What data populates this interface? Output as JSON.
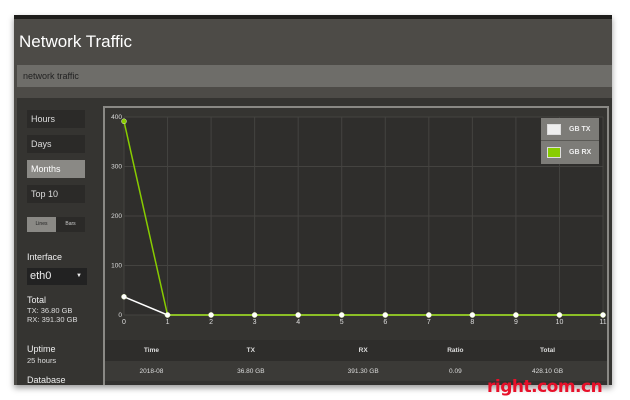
{
  "window": {
    "title": "Network Traffic",
    "breadcrumb": "network traffic"
  },
  "sidebar": {
    "nav": [
      {
        "label": "Hours",
        "active": false
      },
      {
        "label": "Days",
        "active": false
      },
      {
        "label": "Months",
        "active": true
      },
      {
        "label": "Top 10",
        "active": false
      }
    ],
    "view_toggle": {
      "options": [
        "Lines",
        "Bars"
      ],
      "selected": "Lines"
    },
    "interface_label": "Interface",
    "interface_value": "eth0",
    "total_label": "Total",
    "total_tx": "TX: 36.80 GB",
    "total_rx": "RX: 391.30 GB",
    "uptime_label": "Uptime",
    "uptime_value": "25 hours",
    "database_label": "Database"
  },
  "chart_data": {
    "type": "line",
    "x": [
      0,
      1,
      2,
      3,
      4,
      5,
      6,
      7,
      8,
      9,
      10,
      11
    ],
    "xlim": [
      0,
      11
    ],
    "ylim": [
      0,
      400
    ],
    "yticks": [
      0,
      100,
      200,
      300,
      400
    ],
    "grid": true,
    "legend_placement": "top-right",
    "series": [
      {
        "name": "GB TX",
        "color": "#ffffff",
        "values": [
          36.8,
          0,
          0,
          0,
          0,
          0,
          0,
          0,
          0,
          0,
          0,
          0
        ]
      },
      {
        "name": "GB RX",
        "color": "#88cc00",
        "values": [
          391.3,
          0,
          0,
          0,
          0,
          0,
          0,
          0,
          0,
          0,
          0,
          0
        ]
      }
    ]
  },
  "table": {
    "headers": [
      "Time",
      "TX",
      "RX",
      "Ratio",
      "Total"
    ],
    "rows": [
      [
        "2018-08",
        "36.80 GB",
        "391.30 GB",
        "0.09",
        "428.10 GB"
      ]
    ]
  },
  "watermark": "right.com.cn"
}
